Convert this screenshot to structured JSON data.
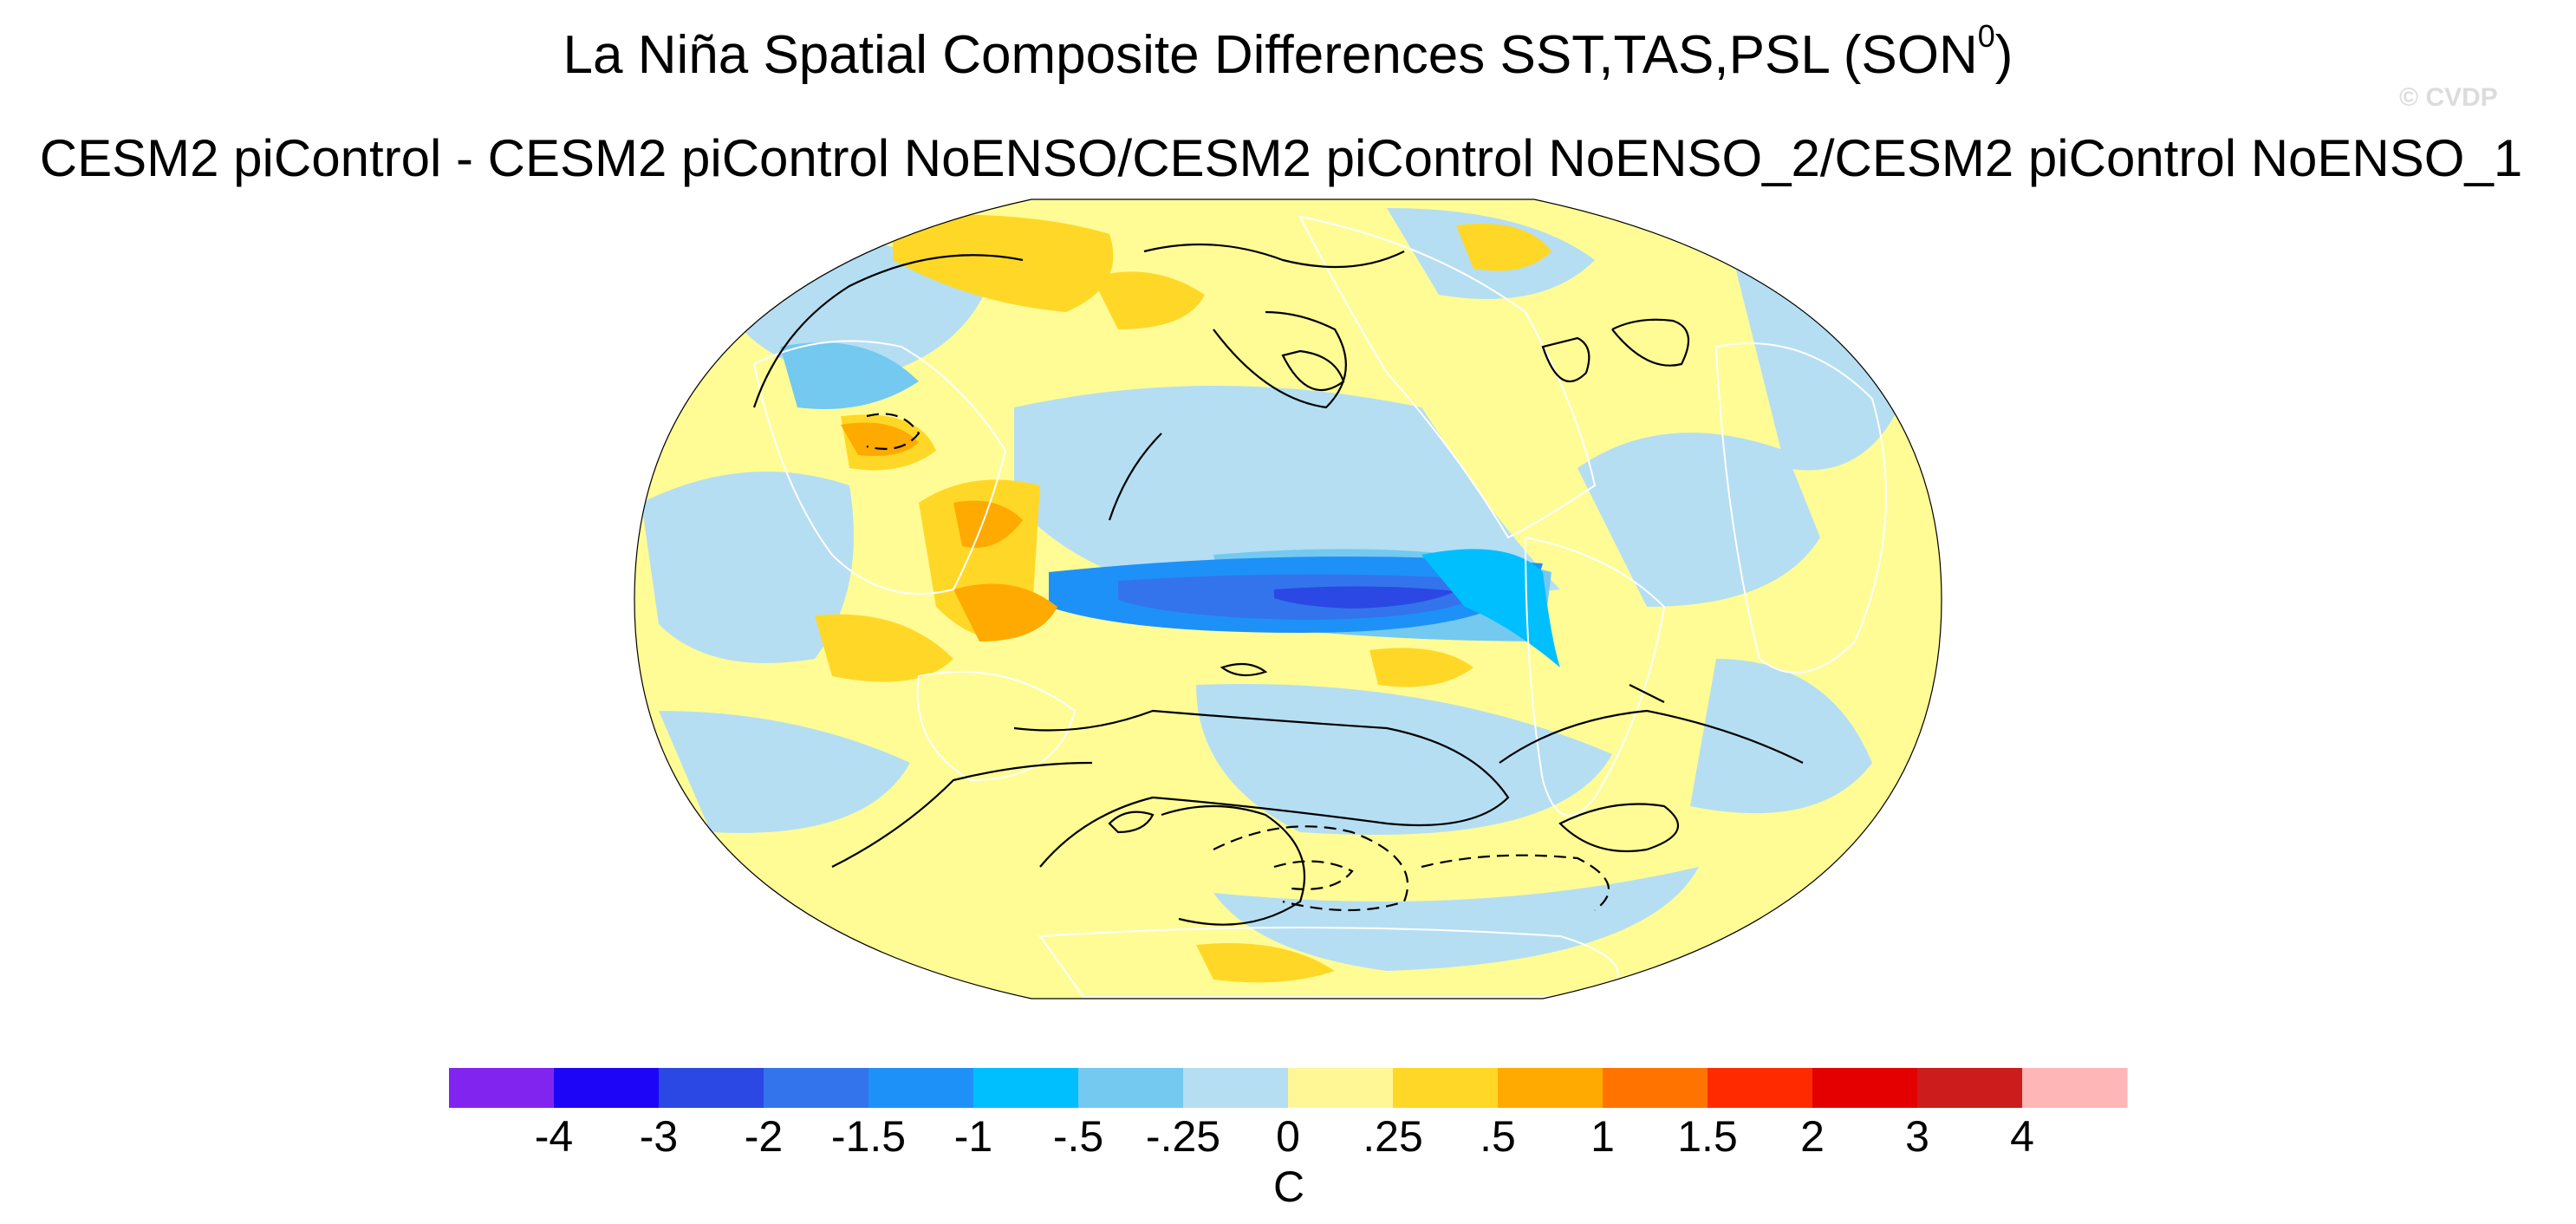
{
  "title": {
    "main": "La Niña Spatial Composite Differences SST,TAS,PSL (SON",
    "superscript": "0",
    "close": ")",
    "subtitle": "CESM2 piControl - CESM2 piControl NoENSO/CESM2 piControl NoENSO_2/CESM2 piControl NoENSO_1"
  },
  "watermark": "© CVDP",
  "map": {
    "projection": "Robinson",
    "central_longitude": 180,
    "fields": [
      "SST",
      "TAS",
      "PSL"
    ],
    "season": "SON",
    "ocean_color": "#fffc96",
    "coast_color": "#ffffff",
    "contour_color": "#000000"
  },
  "colorbar": {
    "units": "C",
    "labels": [
      "-4",
      "-3",
      "-2",
      "-1.5",
      "-1",
      "-.5",
      "-.25",
      "0",
      ".25",
      ".5",
      "1",
      "1.5",
      "2",
      "3",
      "4"
    ],
    "colors": [
      "#8224f0",
      "#1d05f8",
      "#2b47e4",
      "#3374ec",
      "#1d91f8",
      "#00bfff",
      "#73c9f0",
      "#b5def2",
      "#fff796",
      "#ffd827",
      "#ffaa00",
      "#ff7400",
      "#ff2a00",
      "#e40000",
      "#cc1c1c",
      "#ffb6b6"
    ]
  }
}
